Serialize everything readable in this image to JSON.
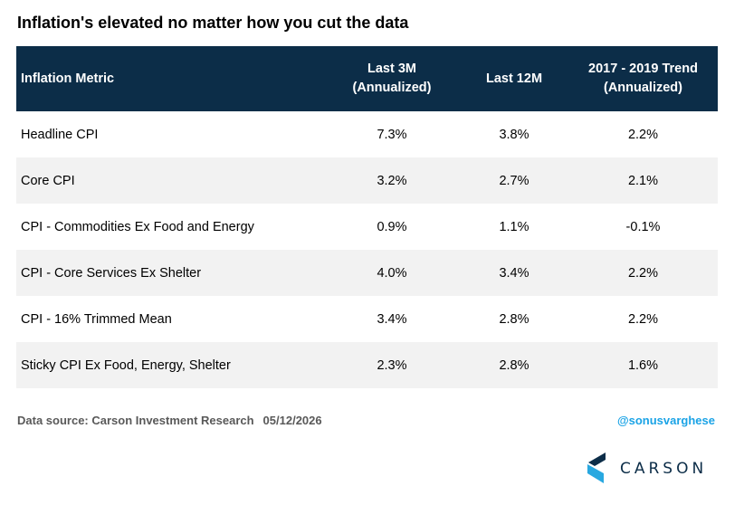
{
  "title": "Inflation's elevated no matter how you cut the data",
  "table": {
    "headers": [
      "Inflation Metric",
      [
        "Last 3M",
        "(Annualized)"
      ],
      "Last 12M",
      [
        "2017 - 2019 Trend",
        "(Annualized)"
      ]
    ],
    "rows": [
      [
        "Headline CPI",
        "7.3%",
        "3.8%",
        "2.2%"
      ],
      [
        "Core CPI",
        "3.2%",
        "2.7%",
        "2.1%"
      ],
      [
        "CPI - Commodities Ex Food and Energy",
        "0.9%",
        "1.1%",
        "-0.1%"
      ],
      [
        "CPI - Core Services Ex Shelter",
        "4.0%",
        "3.4%",
        "2.2%"
      ],
      [
        "CPI - 16% Trimmed Mean",
        "3.4%",
        "2.8%",
        "2.2%"
      ],
      [
        "Sticky CPI Ex Food, Energy, Shelter",
        "2.3%",
        "2.8%",
        "1.6%"
      ]
    ]
  },
  "footer": {
    "source": "Data source: Carson Investment Research",
    "date": "05/12/2026",
    "handle": "@sonusvarghese"
  },
  "logo": {
    "text": "CARSON",
    "icon": "carson-logo-icon"
  },
  "colors": {
    "header_bg": "#0c2d48",
    "stripe_bg": "#f2f2f2",
    "handle": "#1aa3e6",
    "logo_dark": "#0c2d48",
    "logo_light": "#29a8e0"
  }
}
